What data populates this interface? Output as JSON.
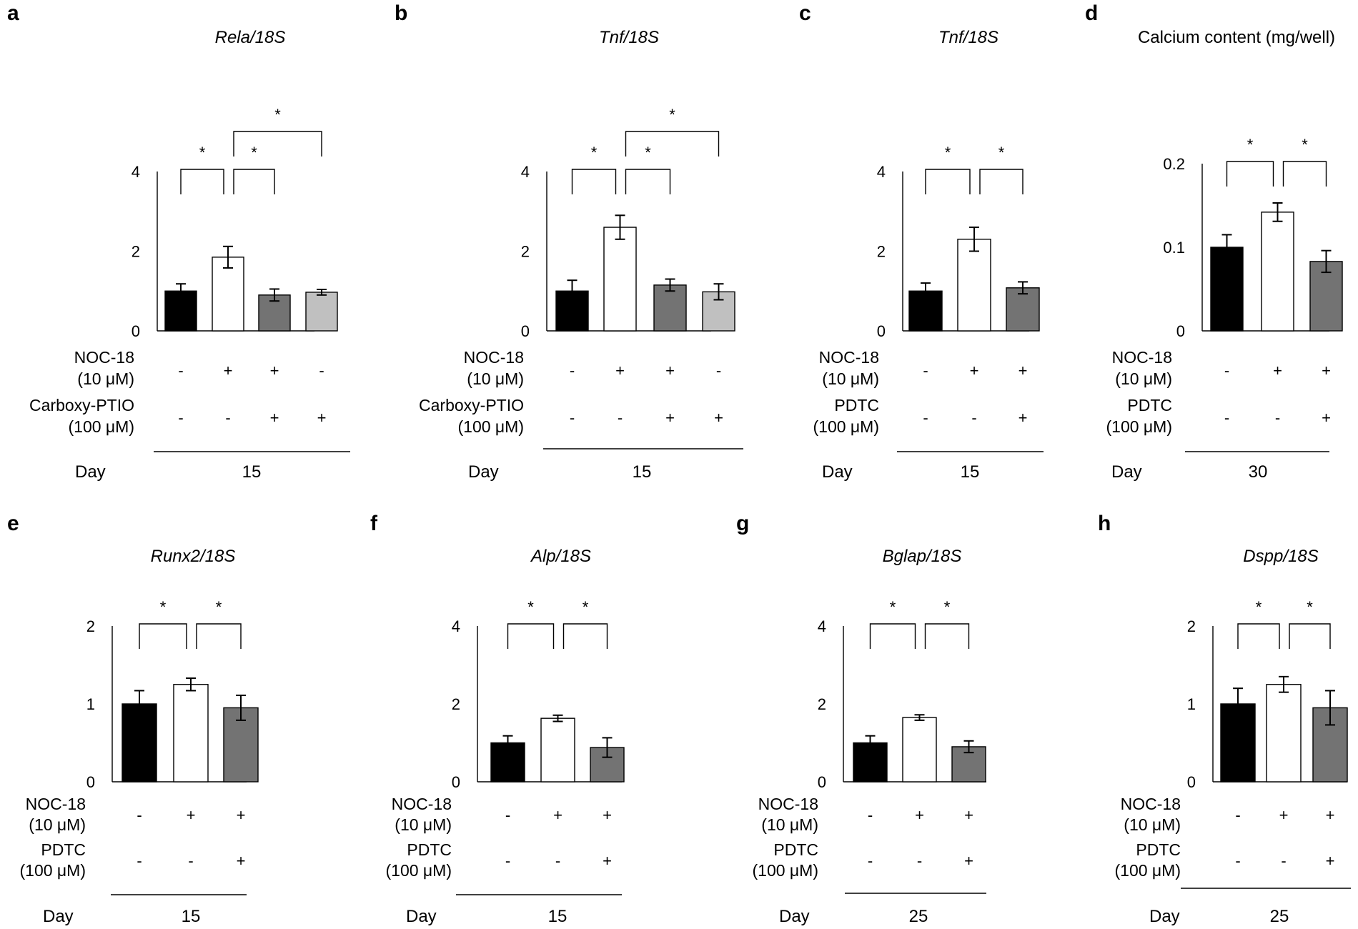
{
  "figure_title": "",
  "chart_data": [
    {
      "letter": "a",
      "type": "bar",
      "title": "Rela/18S",
      "title_italic": true,
      "ylim": [
        0,
        4
      ],
      "yticks": [
        "0",
        "2",
        "4"
      ],
      "values": [
        1.0,
        1.85,
        0.9,
        0.97
      ],
      "errors": [
        0.18,
        0.27,
        0.15,
        0.07
      ],
      "bar_colors": [
        "#000000",
        "#ffffff",
        "#737373",
        "#c0c0c0"
      ],
      "significance": [
        [
          0,
          1
        ],
        [
          1,
          2
        ],
        [
          1,
          3
        ]
      ],
      "conditions": [
        {
          "name": "NOC-18",
          "conc": "(10 μM)",
          "signs": [
            "-",
            "+",
            "+",
            "-"
          ]
        },
        {
          "name": "Carboxy-PTIO",
          "conc": "(100 μM)",
          "signs": [
            "-",
            "-",
            "+",
            "+"
          ]
        }
      ],
      "day_label": "Day",
      "day_value": "15"
    },
    {
      "letter": "b",
      "type": "bar",
      "title": "Tnf/18S",
      "title_italic": true,
      "ylim": [
        0,
        4
      ],
      "yticks": [
        "0",
        "2",
        "4"
      ],
      "values": [
        1.0,
        2.6,
        1.15,
        0.98
      ],
      "errors": [
        0.27,
        0.3,
        0.15,
        0.2
      ],
      "bar_colors": [
        "#000000",
        "#ffffff",
        "#737373",
        "#c0c0c0"
      ],
      "significance": [
        [
          0,
          1
        ],
        [
          1,
          2
        ],
        [
          1,
          3
        ]
      ],
      "conditions": [
        {
          "name": "NOC-18",
          "conc": "(10 μM)",
          "signs": [
            "-",
            "+",
            "+",
            "-"
          ]
        },
        {
          "name": "Carboxy-PTIO",
          "conc": "(100 μM)",
          "signs": [
            "-",
            "-",
            "+",
            "+"
          ]
        }
      ],
      "day_label": "Day",
      "day_value": "15"
    },
    {
      "letter": "c",
      "type": "bar",
      "title": "Tnf/18S",
      "title_italic": true,
      "ylim": [
        0,
        4
      ],
      "yticks": [
        "0",
        "2",
        "4"
      ],
      "values": [
        1.0,
        2.3,
        1.08
      ],
      "errors": [
        0.2,
        0.3,
        0.15
      ],
      "bar_colors": [
        "#000000",
        "#ffffff",
        "#737373"
      ],
      "significance": [
        [
          0,
          1
        ],
        [
          1,
          2
        ]
      ],
      "conditions": [
        {
          "name": "NOC-18",
          "conc": "(10 μM)",
          "signs": [
            "-",
            "+",
            "+"
          ]
        },
        {
          "name": "PDTC",
          "conc": "(100 μM)",
          "signs": [
            "-",
            "-",
            "+"
          ]
        }
      ],
      "day_label": "Day",
      "day_value": "15"
    },
    {
      "letter": "d",
      "type": "bar",
      "title": "Calcium content (mg/well)",
      "title_italic": false,
      "ylim": [
        0,
        0.2
      ],
      "yticks": [
        "0",
        "0.1",
        "0.2"
      ],
      "values": [
        0.1,
        0.142,
        0.083
      ],
      "errors": [
        0.015,
        0.011,
        0.013
      ],
      "bar_colors": [
        "#000000",
        "#ffffff",
        "#737373"
      ],
      "significance": [
        [
          0,
          1
        ],
        [
          1,
          2
        ]
      ],
      "conditions": [
        {
          "name": "NOC-18",
          "conc": "(10 μM)",
          "signs": [
            "-",
            "+",
            "+"
          ]
        },
        {
          "name": "PDTC",
          "conc": "(100 μM)",
          "signs": [
            "-",
            "-",
            "+"
          ]
        }
      ],
      "day_label": "Day",
      "day_value": "30"
    },
    {
      "letter": "e",
      "type": "bar",
      "title": "Runx2/18S",
      "title_italic": true,
      "ylim": [
        0,
        2
      ],
      "yticks": [
        "0",
        "1",
        "2"
      ],
      "values": [
        1.0,
        1.25,
        0.95
      ],
      "errors": [
        0.17,
        0.08,
        0.16
      ],
      "bar_colors": [
        "#000000",
        "#ffffff",
        "#737373"
      ],
      "significance": [
        [
          0,
          1
        ],
        [
          1,
          2
        ]
      ],
      "conditions": [
        {
          "name": "NOC-18",
          "conc": "(10 μM)",
          "signs": [
            "-",
            "+",
            "+"
          ]
        },
        {
          "name": "PDTC",
          "conc": "(100 μM)",
          "signs": [
            "-",
            "-",
            "+"
          ]
        }
      ],
      "day_label": "Day",
      "day_value": "15"
    },
    {
      "letter": "f",
      "type": "bar",
      "title": "Alp/18S",
      "title_italic": true,
      "ylim": [
        0,
        4
      ],
      "yticks": [
        "0",
        "2",
        "4"
      ],
      "values": [
        1.0,
        1.63,
        0.88
      ],
      "errors": [
        0.18,
        0.08,
        0.25
      ],
      "bar_colors": [
        "#000000",
        "#ffffff",
        "#737373"
      ],
      "significance": [
        [
          0,
          1
        ],
        [
          1,
          2
        ]
      ],
      "conditions": [
        {
          "name": "NOC-18",
          "conc": "(10 μM)",
          "signs": [
            "-",
            "+",
            "+"
          ]
        },
        {
          "name": "PDTC",
          "conc": "(100 μM)",
          "signs": [
            "-",
            "-",
            "+"
          ]
        }
      ],
      "day_label": "Day",
      "day_value": "15"
    },
    {
      "letter": "g",
      "type": "bar",
      "title": "Bglap/18S",
      "title_italic": true,
      "ylim": [
        0,
        4
      ],
      "yticks": [
        "0",
        "2",
        "4"
      ],
      "values": [
        1.0,
        1.65,
        0.9
      ],
      "errors": [
        0.18,
        0.07,
        0.15
      ],
      "bar_colors": [
        "#000000",
        "#ffffff",
        "#737373"
      ],
      "significance": [
        [
          0,
          1
        ],
        [
          1,
          2
        ]
      ],
      "conditions": [
        {
          "name": "NOC-18",
          "conc": "(10 μM)",
          "signs": [
            "-",
            "+",
            "+"
          ]
        },
        {
          "name": "PDTC",
          "conc": "(100 μM)",
          "signs": [
            "-",
            "-",
            "+"
          ]
        }
      ],
      "day_label": "Day",
      "day_value": "25"
    },
    {
      "letter": "h",
      "type": "bar",
      "title": "Dspp/18S",
      "title_italic": true,
      "ylim": [
        0,
        2
      ],
      "yticks": [
        "0",
        "1",
        "2"
      ],
      "values": [
        1.0,
        1.25,
        0.95
      ],
      "errors": [
        0.2,
        0.1,
        0.22
      ],
      "bar_colors": [
        "#000000",
        "#ffffff",
        "#737373"
      ],
      "significance": [
        [
          0,
          1
        ],
        [
          1,
          2
        ]
      ],
      "conditions": [
        {
          "name": "NOC-18",
          "conc": "(10 μM)",
          "signs": [
            "-",
            "+",
            "+"
          ]
        },
        {
          "name": "PDTC",
          "conc": "(100 μM)",
          "signs": [
            "-",
            "-",
            "+"
          ]
        }
      ],
      "day_label": "Day",
      "day_value": "25"
    }
  ]
}
